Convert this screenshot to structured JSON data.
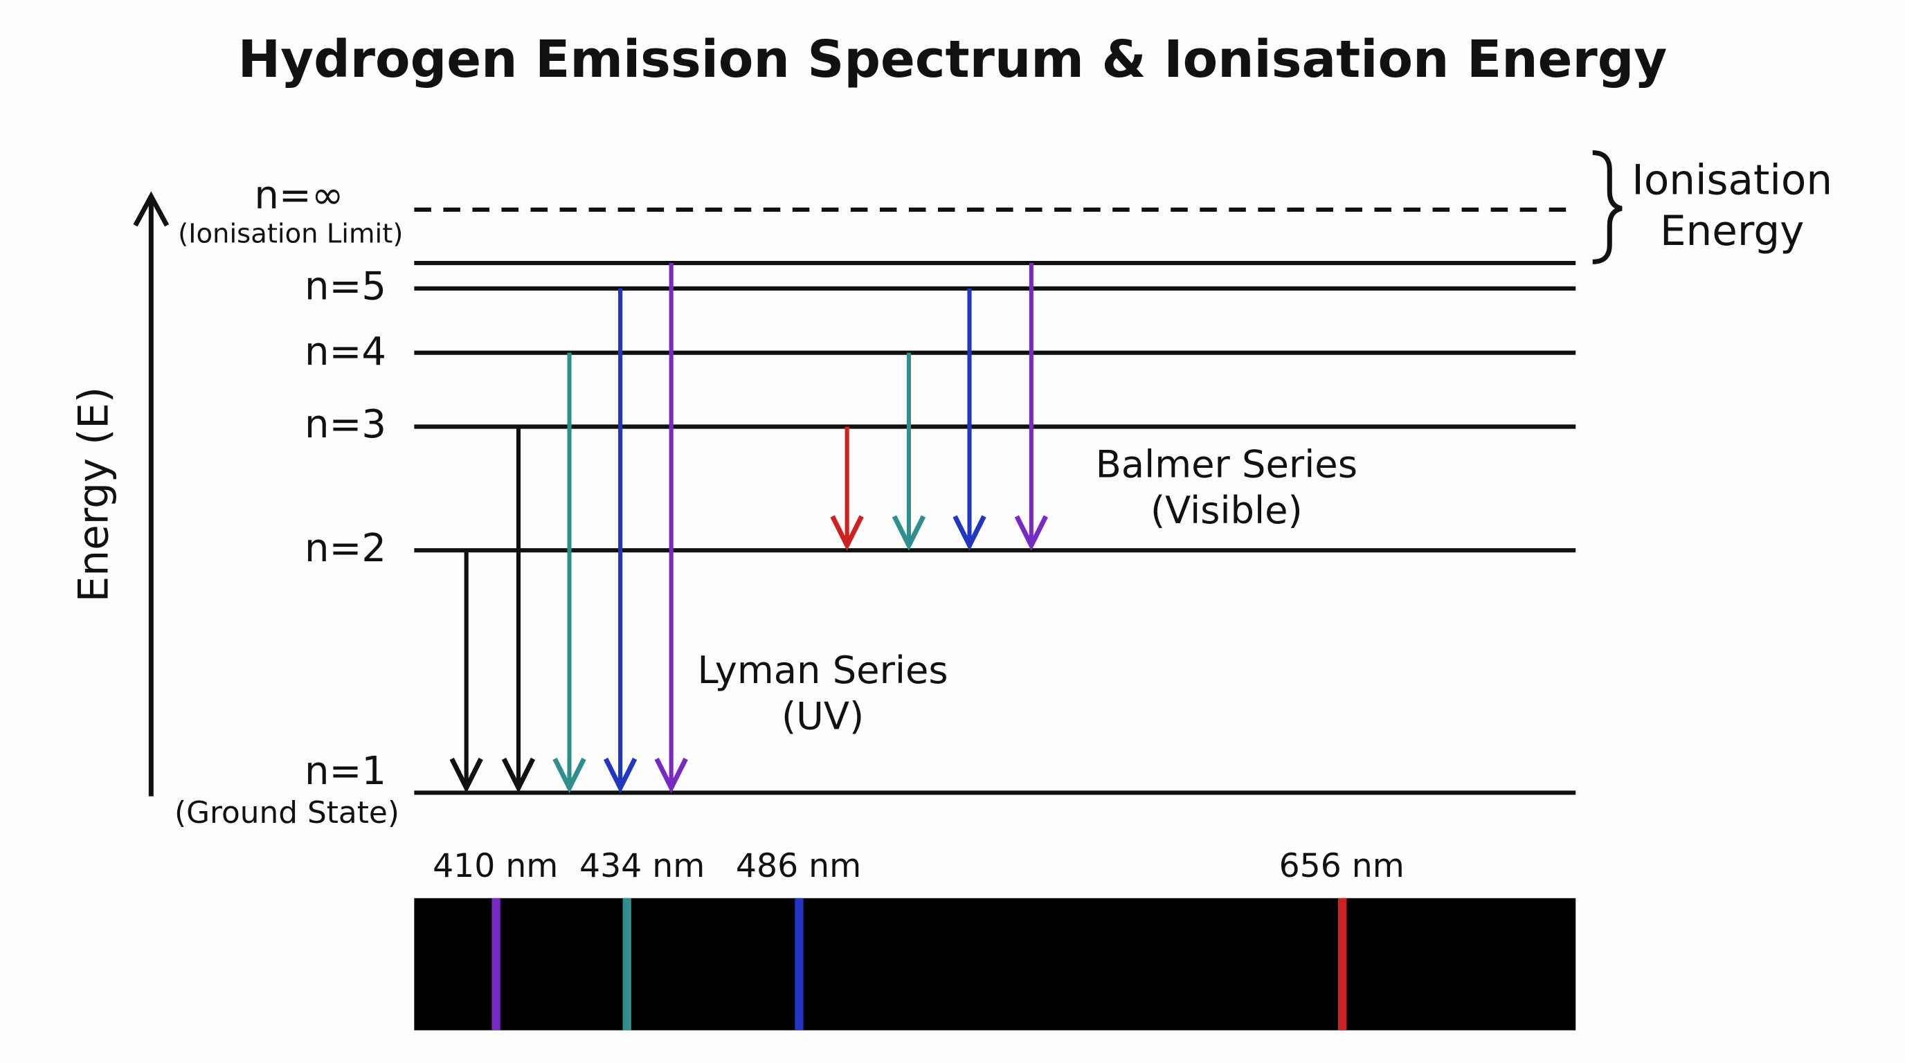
{
  "header": {
    "title": "Hydrogen Emission Spectrum & Ionisation Energy"
  },
  "axis": {
    "label": "Energy (E)"
  },
  "levels": [
    {
      "label": "n=∞",
      "note": "(Ionisation Limit)"
    },
    {
      "label": "n=5"
    },
    {
      "label": "n=4"
    },
    {
      "label": "n=3"
    },
    {
      "label": "n=2"
    },
    {
      "label": "n=1",
      "note": "(Ground State)"
    }
  ],
  "ionisation": {
    "lines": [
      "Ionisation",
      "Energy"
    ]
  },
  "series": [
    {
      "name": "Lyman Series",
      "range": "(UV)"
    },
    {
      "name": "Balmer Series",
      "range": "(Visible)"
    }
  ],
  "spectrum": {
    "labels": [
      "410 nm",
      "434 nm",
      "486 nm",
      "656 nm"
    ]
  }
}
